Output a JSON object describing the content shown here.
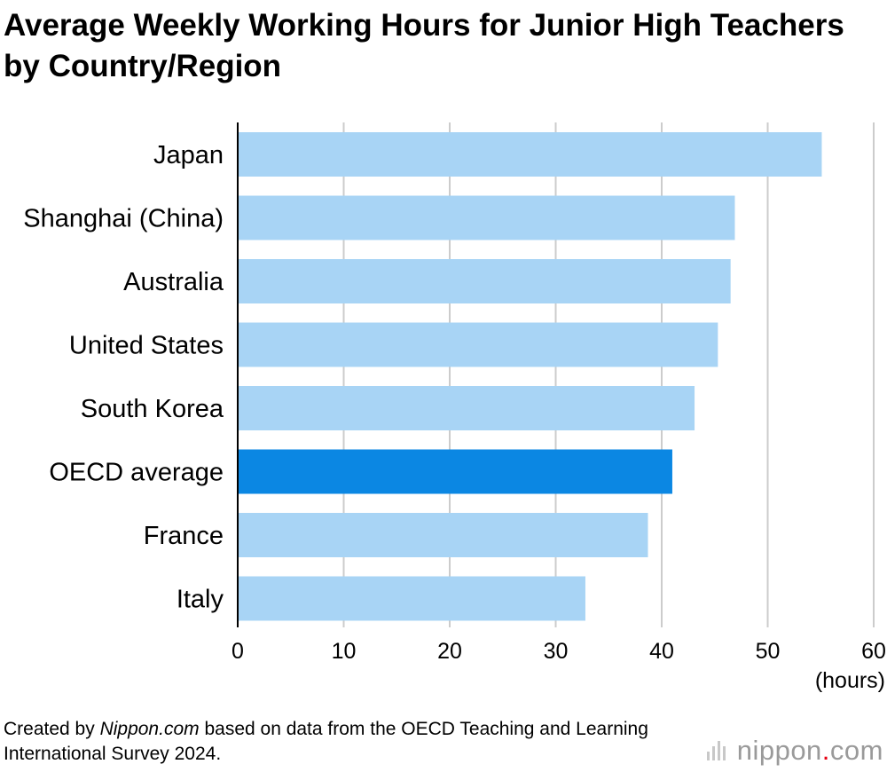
{
  "title": "Average Weekly Working Hours for Junior High Teachers by Country/Region",
  "source": {
    "prefix": "Created by ",
    "site": "Nippon.com",
    "suffix": " based on data from the OECD Teaching and Learning International Survey 2024."
  },
  "logo": {
    "name": "nippon",
    "dot": ".",
    "tld": "com"
  },
  "colors": {
    "bar": "#a8d4f5",
    "highlight": "#0b87e3",
    "grid": "#cccccc",
    "axis": "#000000"
  },
  "chart_data": {
    "type": "bar",
    "orientation": "horizontal",
    "categories": [
      "Japan",
      "Shanghai (China)",
      "Australia",
      "United States",
      "South Korea",
      "OECD average",
      "France",
      "Italy"
    ],
    "values": [
      55.1,
      46.9,
      46.5,
      45.3,
      43.1,
      41.0,
      38.7,
      32.8
    ],
    "highlight": "OECD average",
    "xlim": [
      0,
      60
    ],
    "xticks": [
      "0",
      "10",
      "20",
      "30",
      "40",
      "50",
      "60"
    ],
    "xunit": "(hours)",
    "grid": true
  }
}
